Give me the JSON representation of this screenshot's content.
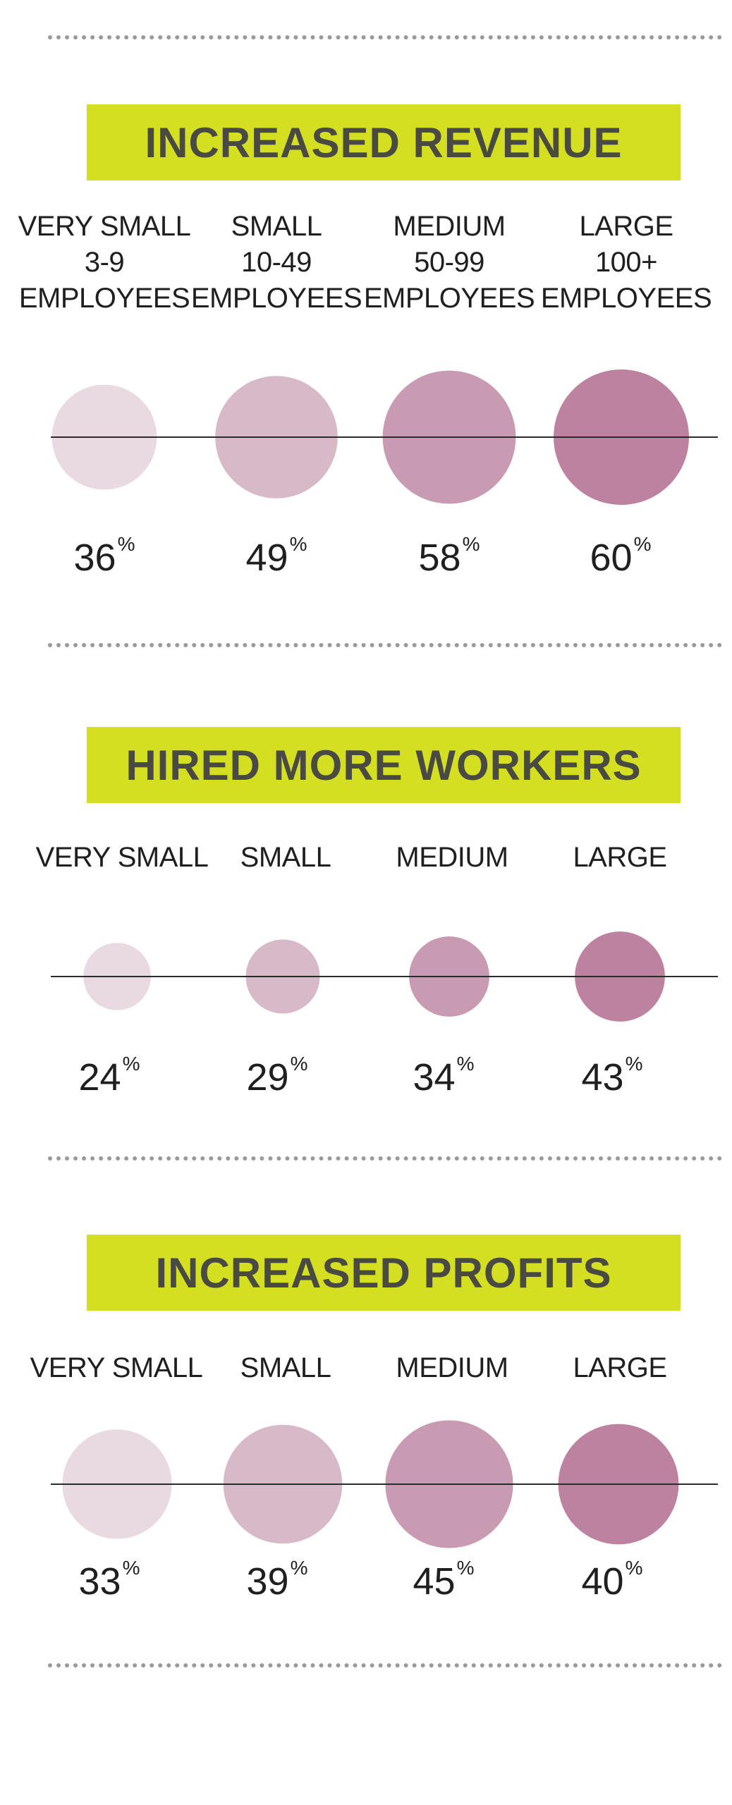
{
  "chart_data": [
    {
      "type": "bubble",
      "title": "INCREASED REVENUE",
      "categories": [
        [
          "VERY SMALL",
          "3-9",
          "EMPLOYEES"
        ],
        [
          "SMALL",
          "10-49",
          "EMPLOYEES"
        ],
        [
          "MEDIUM",
          "50-99",
          "EMPLOYEES"
        ],
        [
          "LARGE",
          "100+",
          "EMPLOYEES"
        ]
      ],
      "values": [
        36,
        49,
        58,
        60
      ],
      "value_labels": [
        "36",
        "49",
        "58",
        "60"
      ],
      "unit": "%",
      "colors": [
        "#e9dae1",
        "#d8b9c8",
        "#c99bb2",
        "#bd82a0"
      ]
    },
    {
      "type": "bubble",
      "title": "HIRED MORE WORKERS",
      "categories": [
        [
          "VERY SMALL"
        ],
        [
          "SMALL"
        ],
        [
          "MEDIUM"
        ],
        [
          "LARGE"
        ]
      ],
      "values": [
        24,
        29,
        34,
        43
      ],
      "value_labels": [
        "24",
        "29",
        "34",
        "43"
      ],
      "unit": "%",
      "colors": [
        "#e9dae1",
        "#d8b9c8",
        "#c99bb2",
        "#bd82a0"
      ]
    },
    {
      "type": "bubble",
      "title": "INCREASED PROFITS",
      "categories": [
        [
          "VERY SMALL"
        ],
        [
          "SMALL"
        ],
        [
          "MEDIUM"
        ],
        [
          "LARGE"
        ]
      ],
      "values": [
        33,
        39,
        45,
        40
      ],
      "value_labels": [
        "33",
        "39",
        "45",
        "40"
      ],
      "unit": "%",
      "colors": [
        "#e9dae1",
        "#d8b9c8",
        "#c99bb2",
        "#bd82a0"
      ]
    }
  ]
}
